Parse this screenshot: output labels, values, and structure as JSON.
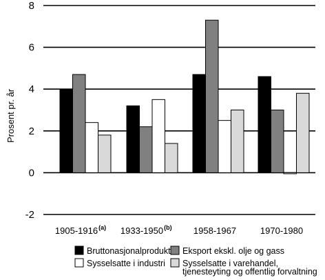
{
  "chart_data": {
    "type": "bar",
    "title": "",
    "ylabel": "Prosent pr. år",
    "xlabel": "",
    "ylim": [
      -2,
      8
    ],
    "yticks": [
      -2,
      0,
      2,
      4,
      6,
      8
    ],
    "grid": "horizontal",
    "legend_position": "bottom",
    "categories": [
      {
        "label": "1905-1916",
        "sup": "(a)"
      },
      {
        "label": "1933-1950",
        "sup": "(b)"
      },
      {
        "label": "1958-1967",
        "sup": ""
      },
      {
        "label": "1970-1980",
        "sup": ""
      }
    ],
    "series": [
      {
        "name": "Bruttonasjonalprodukt",
        "color": "#000000",
        "values": [
          4.0,
          3.2,
          4.7,
          4.6
        ]
      },
      {
        "name": "Eksport ekskl. olje og gass",
        "color": "#808080",
        "values": [
          4.7,
          2.2,
          7.3,
          3.0
        ]
      },
      {
        "name": "Sysselsatte i industri",
        "color": "#ffffff",
        "values": [
          2.4,
          3.5,
          2.5,
          -0.05
        ]
      },
      {
        "name": "Sysselsatte i varehandel, tjenesteyting og offentlig forvaltning",
        "name_lines": [
          "Sysselsatte i varehandel,",
          "tjenesteyting og offentlig forvaltning"
        ],
        "color": "#d9d9d9",
        "values": [
          1.8,
          1.4,
          3.0,
          3.8
        ]
      }
    ]
  }
}
